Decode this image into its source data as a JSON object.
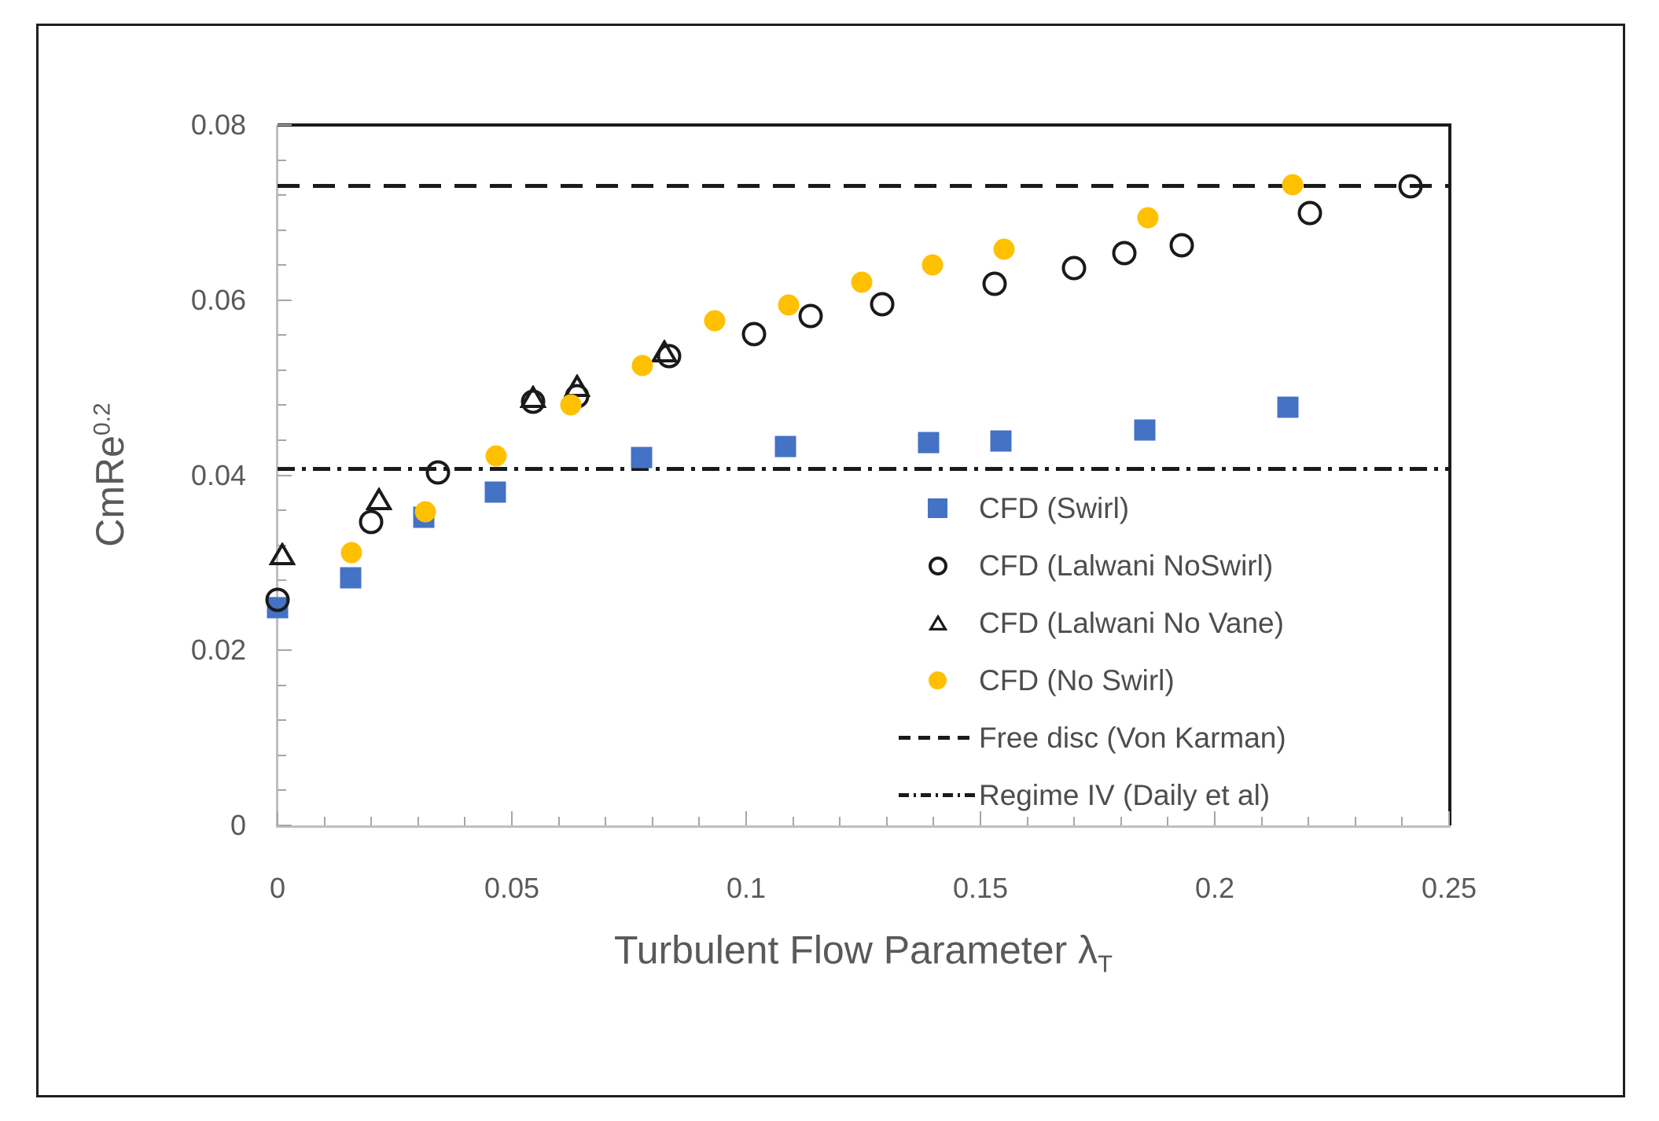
{
  "chart_data": {
    "type": "scatter",
    "title": "",
    "xlabel_main": "Turbulent Flow Parameter λ",
    "xlabel_sub": "T",
    "ylabel_main": "CmRe",
    "ylabel_sup": "0.2",
    "xlim": [
      0,
      0.25
    ],
    "ylim": [
      0,
      0.08
    ],
    "grid": false,
    "legend_position": "inside lower-right",
    "x_major_ticks": {
      "values": [
        0,
        0.05,
        0.1,
        0.15,
        0.2,
        0.25
      ],
      "labels": [
        "0",
        "0.05",
        "0.1",
        "0.15",
        "0.2",
        "0.25"
      ]
    },
    "y_major_ticks": {
      "values": [
        0,
        0.02,
        0.04,
        0.06,
        0.08
      ],
      "labels": [
        "0",
        "0.02",
        "0.04",
        "0.06",
        "0.08"
      ]
    },
    "x_minor_step": 0.01,
    "y_minor_step": 0.004,
    "colors": {
      "swirl_blue": "#4472C4",
      "noswirl_gold": "#FFC000",
      "open_marker_stroke": "#1a1a1a",
      "axis_gray": "#bfbfbf",
      "tick_gray": "#a6a6a6",
      "label_gray": "#595959",
      "frame_dark": "#1a1a1a"
    },
    "series": [
      {
        "name": "CFD (Swirl)",
        "marker": "square-filled",
        "color": "#4472C4",
        "points": [
          [
            0,
            0.0249
          ],
          [
            0.0156,
            0.0283
          ],
          [
            0.0312,
            0.0352
          ],
          [
            0.0465,
            0.0381
          ],
          [
            0.0777,
            0.042
          ],
          [
            0.1084,
            0.0433
          ],
          [
            0.139,
            0.0437
          ],
          [
            0.1544,
            0.0439
          ],
          [
            0.1851,
            0.0452
          ],
          [
            0.2156,
            0.0478
          ]
        ]
      },
      {
        "name": "CFD (Lalwani NoSwirl)",
        "marker": "circle-open",
        "color": "#1a1a1a",
        "points": [
          [
            0,
            0.0258
          ],
          [
            0.0199,
            0.0347
          ],
          [
            0.0342,
            0.0403
          ],
          [
            0.0545,
            0.0484
          ],
          [
            0.064,
            0.049
          ],
          [
            0.0836,
            0.0536
          ],
          [
            0.1017,
            0.0561
          ],
          [
            0.1137,
            0.0582
          ],
          [
            0.129,
            0.0595
          ],
          [
            0.1531,
            0.0619
          ],
          [
            0.17,
            0.0637
          ],
          [
            0.1807,
            0.0654
          ],
          [
            0.193,
            0.0663
          ],
          [
            0.2203,
            0.0699
          ],
          [
            0.2417,
            0.073
          ]
        ]
      },
      {
        "name": "CFD (Lalwani No Vane)",
        "marker": "triangle-open",
        "color": "#1a1a1a",
        "points": [
          [
            0.001,
            0.031
          ],
          [
            0.0216,
            0.0373
          ],
          [
            0.0545,
            0.0489
          ],
          [
            0.064,
            0.0502
          ],
          [
            0.0826,
            0.0541
          ]
        ]
      },
      {
        "name": "CFD (No Swirl)",
        "marker": "circle-filled",
        "color": "#FFC000",
        "points": [
          [
            0.0157,
            0.0312
          ],
          [
            0.0315,
            0.0358
          ],
          [
            0.0467,
            0.0422
          ],
          [
            0.0626,
            0.048
          ],
          [
            0.0779,
            0.0525
          ],
          [
            0.0933,
            0.0576
          ],
          [
            0.109,
            0.0594
          ],
          [
            0.1246,
            0.062
          ],
          [
            0.1397,
            0.064
          ],
          [
            0.1551,
            0.0658
          ],
          [
            0.1857,
            0.0694
          ],
          [
            0.2166,
            0.0732
          ]
        ]
      }
    ],
    "ref_lines": [
      {
        "name": "Free disc (Von Karman)",
        "style": "dashed",
        "y": 0.073
      },
      {
        "name": "Regime IV (Daily et al)",
        "style": "dashdot",
        "y": 0.0407
      }
    ]
  }
}
